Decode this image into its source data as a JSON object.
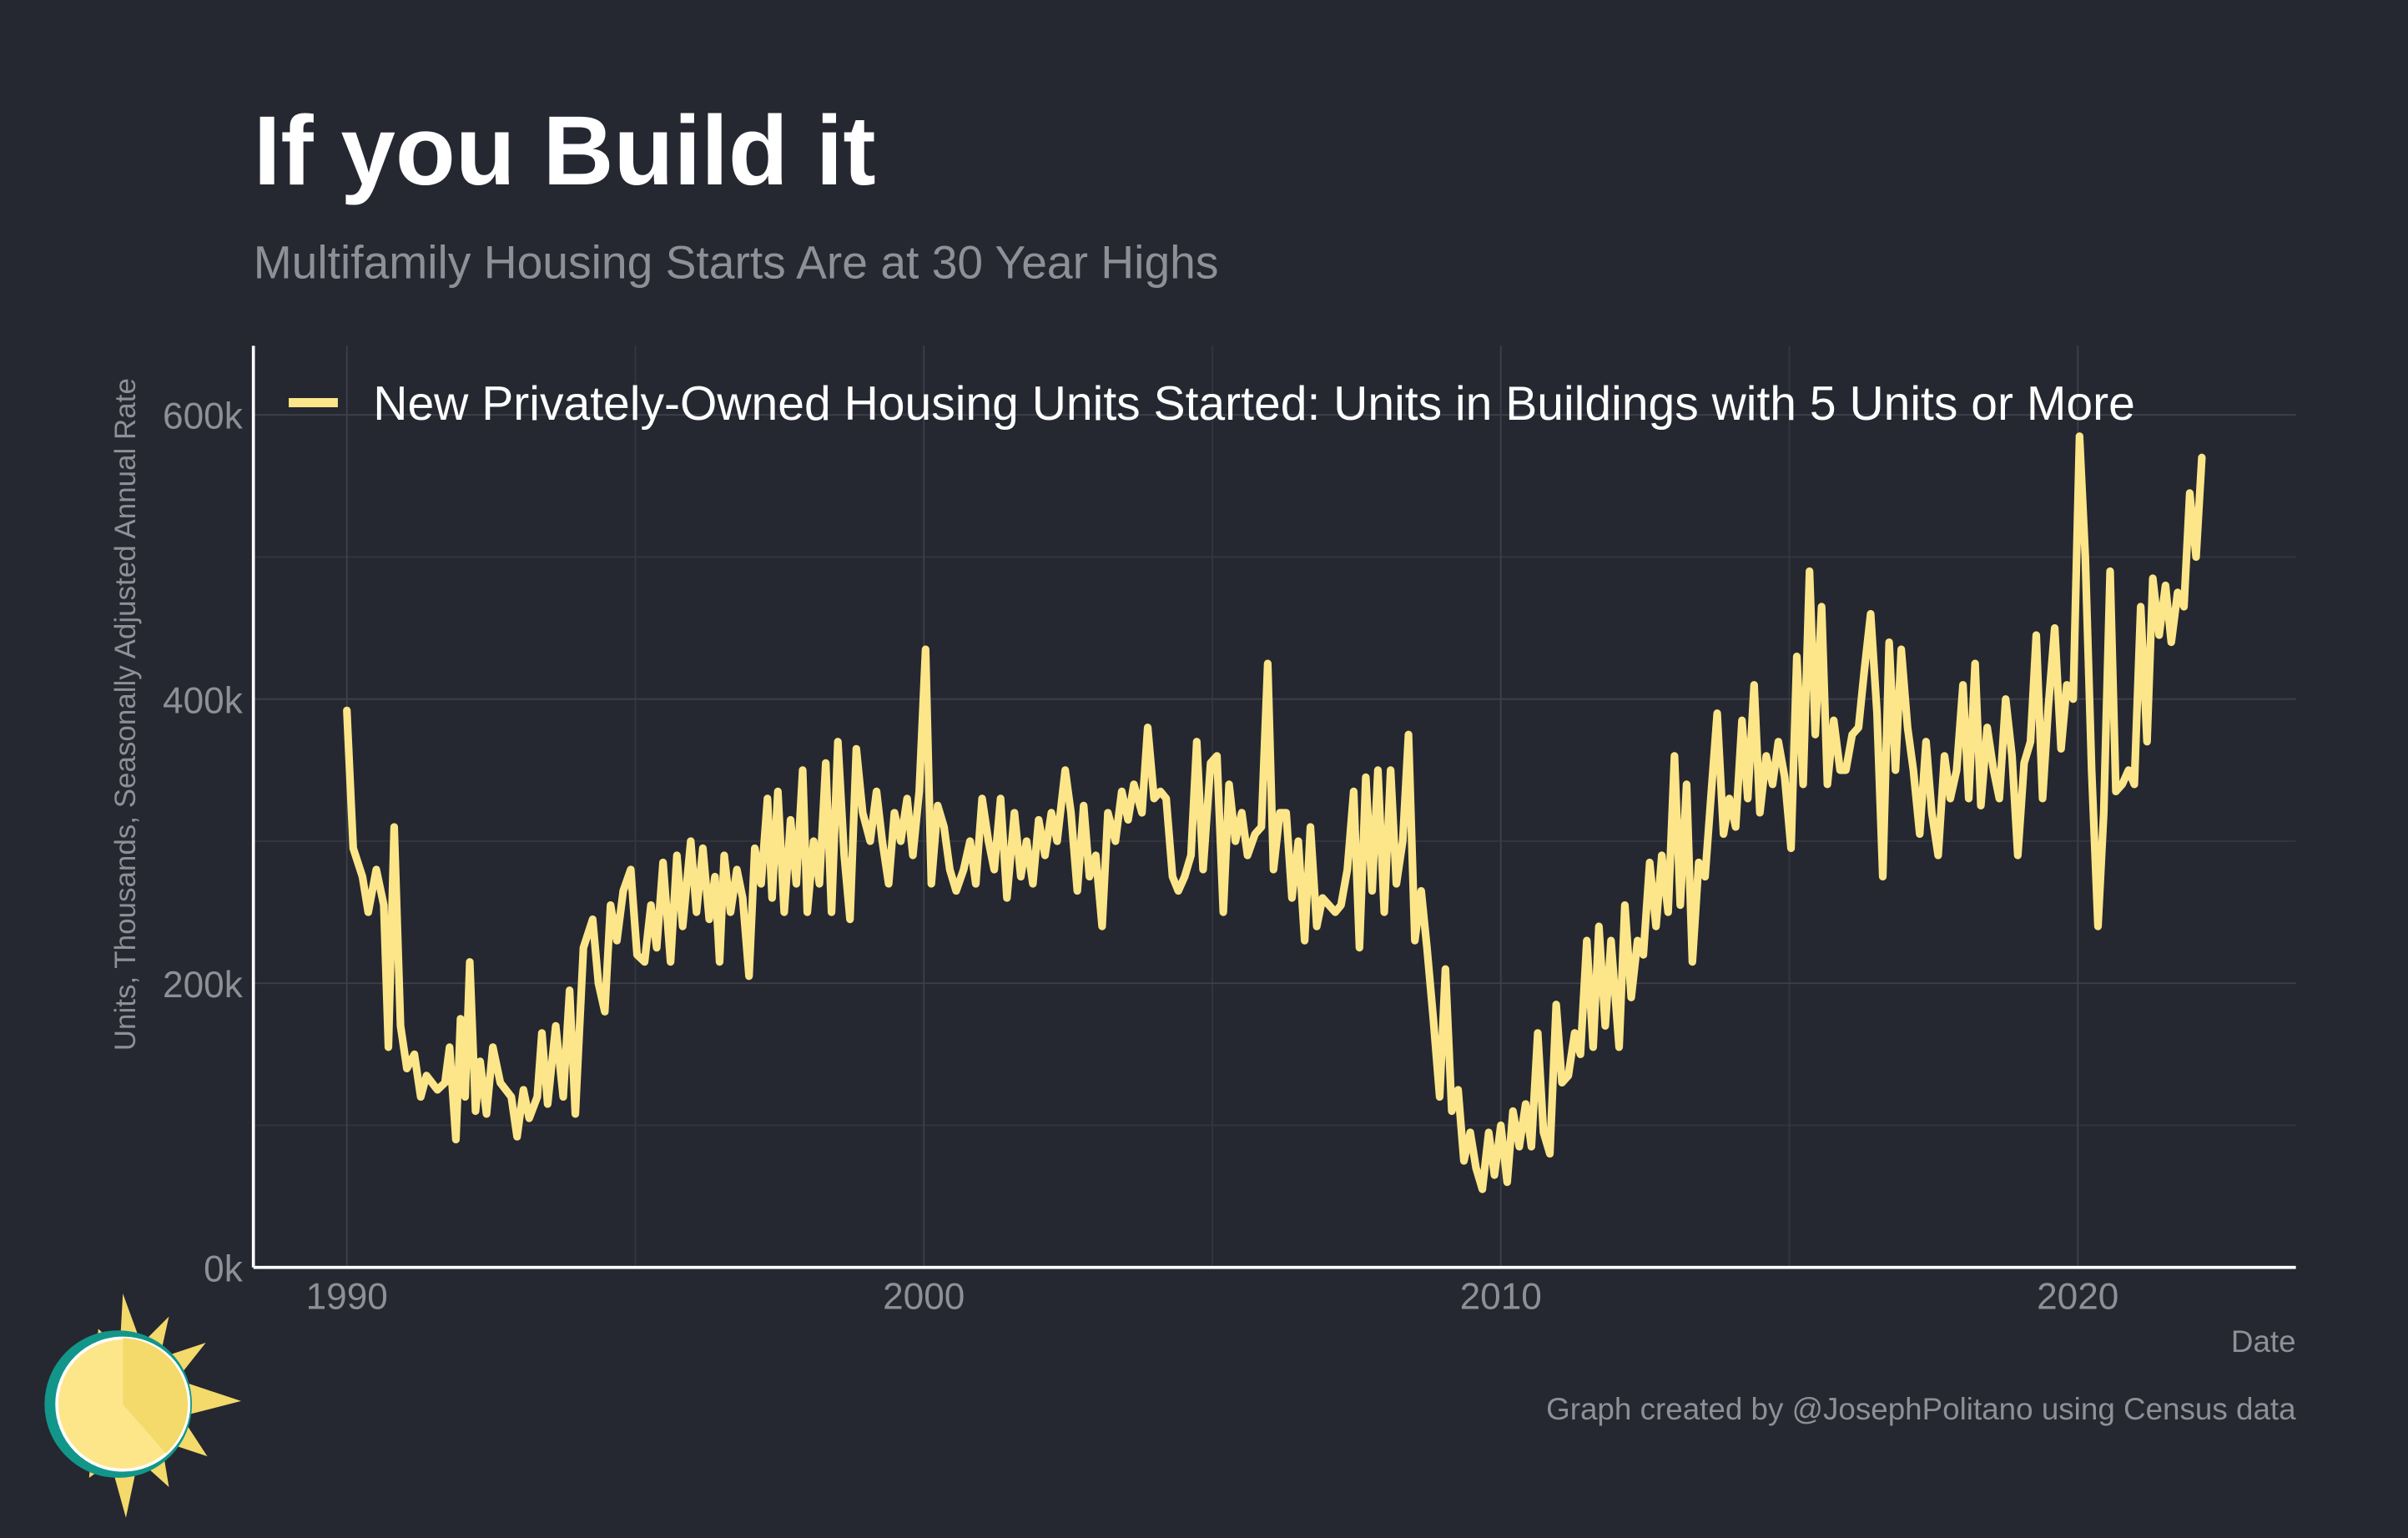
{
  "chart_data": {
    "type": "line",
    "title": "If you Build it",
    "subtitle": "Multifamily Housing Starts Are at 30 Year Highs",
    "x_label": "Date",
    "y_label": "Units, Thousands, Seasonally Adjusted Annual Rate",
    "caption": "Graph created by @JosephPolitano using Census data",
    "legend_position": "top-left",
    "grid": true,
    "xlim": [
      1988.38,
      2023.78
    ],
    "ylim": [
      0,
      648.6
    ],
    "xticks": [
      1990,
      2000,
      2010,
      2020
    ],
    "x_minor_ticks": [
      1995,
      2005,
      2015
    ],
    "yticks": [
      {
        "value": 0,
        "label": "0k"
      },
      {
        "value": 200,
        "label": "200k"
      },
      {
        "value": 400,
        "label": "400k"
      },
      {
        "value": 600,
        "label": "600k"
      }
    ],
    "y_minor_ticks": [
      100,
      300,
      500
    ],
    "x": [
      1990.0,
      1990.11,
      1990.27,
      1990.37,
      1990.51,
      1990.64,
      1990.72,
      1990.82,
      1990.93,
      1991.04,
      1991.17,
      1991.28,
      1991.38,
      1991.57,
      1991.7,
      1991.78,
      1991.89,
      1991.97,
      1992.05,
      1992.13,
      1992.23,
      1992.31,
      1992.42,
      1992.53,
      1992.66,
      1992.85,
      1992.95,
      1993.06,
      1993.16,
      1993.3,
      1993.38,
      1993.48,
      1993.62,
      1993.75,
      1993.86,
      1993.96,
      1994.1,
      1994.26,
      1994.36,
      1994.47,
      1994.57,
      1994.68,
      1994.79,
      1994.92,
      1995.03,
      1995.16,
      1995.27,
      1995.37,
      1995.48,
      1995.61,
      1995.72,
      1995.82,
      1995.96,
      1996.06,
      1996.17,
      1996.28,
      1996.38,
      1996.46,
      1996.54,
      1996.65,
      1996.76,
      1996.86,
      1996.97,
      1997.07,
      1997.18,
      1997.29,
      1997.37,
      1997.47,
      1997.58,
      1997.69,
      1997.79,
      1997.9,
      1997.98,
      1998.09,
      1998.19,
      1998.3,
      1998.4,
      1998.51,
      1998.62,
      1998.72,
      1998.83,
      1998.94,
      1999.07,
      1999.18,
      1999.28,
      1999.39,
      1999.49,
      1999.6,
      1999.71,
      1999.81,
      1999.92,
      2000.03,
      2000.13,
      2000.24,
      2000.35,
      2000.45,
      2000.56,
      2000.69,
      2000.8,
      2000.9,
      2001.01,
      2001.12,
      2001.22,
      2001.33,
      2001.44,
      2001.57,
      2001.68,
      2001.78,
      2001.89,
      2001.99,
      2002.1,
      2002.21,
      2002.31,
      2002.45,
      2002.55,
      2002.66,
      2002.77,
      2002.87,
      2002.98,
      2003.09,
      2003.19,
      2003.32,
      2003.43,
      2003.54,
      2003.64,
      2003.78,
      2003.88,
      2003.99,
      2004.1,
      2004.2,
      2004.31,
      2004.41,
      2004.52,
      2004.63,
      2004.73,
      2004.84,
      2004.97,
      2005.08,
      2005.19,
      2005.29,
      2005.4,
      2005.51,
      2005.61,
      2005.74,
      2005.85,
      2005.96,
      2006.06,
      2006.17,
      2006.28,
      2006.38,
      2006.49,
      2006.6,
      2006.7,
      2006.81,
      2006.91,
      2007.02,
      2007.13,
      2007.23,
      2007.34,
      2007.45,
      2007.55,
      2007.66,
      2007.77,
      2007.87,
      2007.98,
      2008.09,
      2008.19,
      2008.3,
      2008.4,
      2008.51,
      2008.62,
      2008.72,
      2008.83,
      2008.94,
      2009.04,
      2009.15,
      2009.26,
      2009.36,
      2009.47,
      2009.57,
      2009.68,
      2009.79,
      2009.89,
      2010.0,
      2010.11,
      2010.21,
      2010.32,
      2010.43,
      2010.53,
      2010.64,
      2010.74,
      2010.85,
      2010.96,
      2011.06,
      2011.17,
      2011.28,
      2011.38,
      2011.49,
      2011.6,
      2011.7,
      2011.81,
      2011.91,
      2012.05,
      2012.15,
      2012.26,
      2012.37,
      2012.47,
      2012.58,
      2012.69,
      2012.79,
      2012.9,
      2013.01,
      2013.11,
      2013.22,
      2013.32,
      2013.43,
      2013.54,
      2013.64,
      2013.75,
      2013.86,
      2013.96,
      2014.07,
      2014.18,
      2014.28,
      2014.39,
      2014.49,
      2014.6,
      2014.71,
      2014.81,
      2014.92,
      2015.03,
      2015.13,
      2015.24,
      2015.35,
      2015.45,
      2015.56,
      2015.66,
      2015.77,
      2015.88,
      2015.98,
      2016.09,
      2016.2,
      2016.3,
      2016.41,
      2016.52,
      2016.62,
      2016.73,
      2016.84,
      2016.94,
      2017.05,
      2017.15,
      2017.26,
      2017.37,
      2017.47,
      2017.58,
      2017.69,
      2017.79,
      2017.9,
      2018.01,
      2018.11,
      2018.22,
      2018.32,
      2018.43,
      2018.54,
      2018.64,
      2018.75,
      2018.86,
      2018.96,
      2019.07,
      2019.18,
      2019.28,
      2019.39,
      2019.49,
      2019.6,
      2019.71,
      2019.81,
      2019.92,
      2020.03,
      2020.13,
      2020.24,
      2020.35,
      2020.45,
      2020.56,
      2020.66,
      2020.77,
      2020.88,
      2020.98,
      2021.09,
      2021.2,
      2021.3,
      2021.41,
      2021.52,
      2021.62,
      2021.73,
      2021.84,
      2021.94,
      2022.05,
      2022.15
    ],
    "series": [
      {
        "name": "New Privately-Owned Housing Units Started: Units in Buildings with 5 Units or More",
        "color": "#fde68a",
        "values": [
          392,
          295,
          275,
          250,
          280,
          255,
          155,
          310,
          170,
          140,
          150,
          120,
          135,
          125,
          130,
          155,
          90,
          175,
          120,
          215,
          110,
          145,
          108,
          155,
          130,
          120,
          92,
          125,
          105,
          120,
          165,
          115,
          170,
          120,
          195,
          108,
          225,
          245,
          200,
          180,
          255,
          230,
          265,
          280,
          220,
          215,
          255,
          225,
          285,
          215,
          290,
          240,
          300,
          250,
          295,
          245,
          275,
          215,
          290,
          250,
          280,
          260,
          205,
          295,
          270,
          330,
          260,
          335,
          250,
          315,
          270,
          350,
          250,
          300,
          270,
          355,
          250,
          370,
          290,
          245,
          365,
          320,
          300,
          335,
          300,
          270,
          320,
          300,
          330,
          290,
          335,
          435,
          270,
          325,
          310,
          280,
          265,
          280,
          300,
          270,
          330,
          300,
          280,
          330,
          260,
          320,
          275,
          300,
          270,
          315,
          290,
          320,
          300,
          350,
          320,
          265,
          325,
          275,
          290,
          240,
          320,
          300,
          335,
          315,
          340,
          320,
          380,
          330,
          335,
          330,
          275,
          265,
          275,
          290,
          370,
          280,
          355,
          360,
          250,
          340,
          300,
          320,
          290,
          305,
          310,
          425,
          280,
          320,
          320,
          260,
          300,
          230,
          310,
          240,
          260,
          255,
          250,
          255,
          280,
          335,
          225,
          345,
          265,
          350,
          250,
          350,
          270,
          300,
          375,
          230,
          265,
          225,
          175,
          120,
          210,
          110,
          125,
          75,
          95,
          70,
          55,
          95,
          65,
          100,
          60,
          110,
          85,
          115,
          85,
          165,
          95,
          80,
          185,
          130,
          135,
          165,
          150,
          230,
          155,
          240,
          170,
          230,
          155,
          255,
          190,
          230,
          220,
          285,
          240,
          290,
          250,
          360,
          255,
          340,
          215,
          285,
          275,
          330,
          390,
          305,
          330,
          310,
          385,
          330,
          410,
          320,
          360,
          340,
          370,
          345,
          295,
          430,
          340,
          490,
          375,
          465,
          340,
          385,
          350,
          350,
          375,
          380,
          420,
          460,
          390,
          275,
          440,
          350,
          435,
          380,
          350,
          305,
          370,
          320,
          290,
          360,
          330,
          350,
          410,
          330,
          425,
          325,
          380,
          350,
          330,
          400,
          360,
          290,
          355,
          370,
          445,
          330,
          395,
          450,
          365,
          410,
          400,
          585,
          500,
          350,
          240,
          320,
          490,
          335,
          340,
          350,
          340,
          465,
          370,
          485,
          445,
          480,
          440,
          475,
          465,
          545,
          500,
          570
        ]
      }
    ]
  }
}
